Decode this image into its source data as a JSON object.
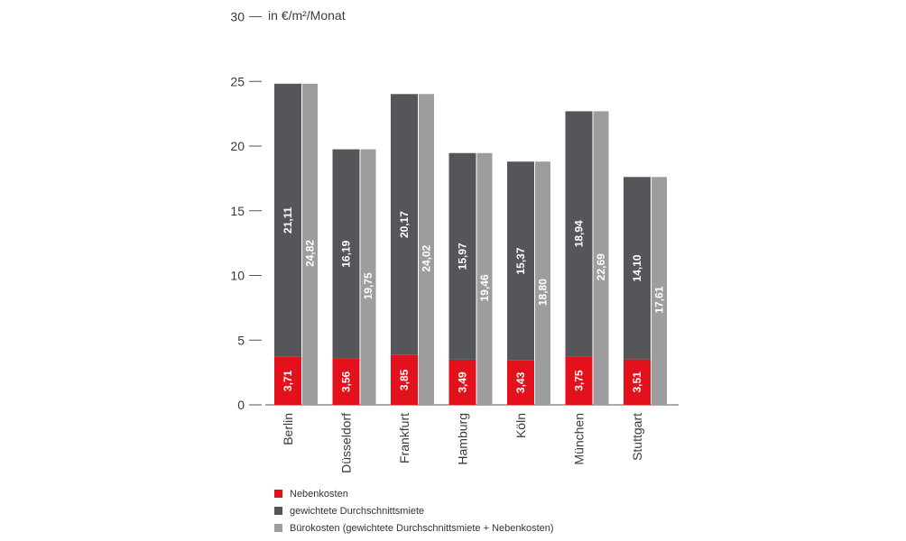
{
  "chart_data": {
    "type": "bar",
    "ylabel": "in €/m²/Monat",
    "ylim": [
      0,
      30
    ],
    "yticks": [
      0,
      5,
      10,
      15,
      20,
      25,
      30
    ],
    "categories": [
      "Berlin",
      "Düsseldorf",
      "Frankfurt",
      "Hamburg",
      "Köln",
      "München",
      "Stuttgart"
    ],
    "series": [
      {
        "name": "Nebenkosten",
        "color": "#e3111b",
        "values": [
          3.71,
          3.56,
          3.85,
          3.49,
          3.43,
          3.75,
          3.51
        ],
        "labels": [
          "3,71",
          "3,56",
          "3,85",
          "3,49",
          "3,43",
          "3,75",
          "3,51"
        ]
      },
      {
        "name": "gewichtete Durchschnittsmiete",
        "color": "#54565a",
        "values": [
          21.11,
          16.19,
          20.17,
          15.97,
          15.37,
          18.94,
          14.1
        ],
        "labels": [
          "21,11",
          "16,19",
          "20,17",
          "15,97",
          "15,37",
          "18,94",
          "14,10"
        ]
      },
      {
        "name": "Bürokosten (gewichtete Durchschnittsmiete + Nebenkosten)",
        "color": "#9d9d9f",
        "values": [
          24.82,
          19.75,
          24.02,
          19.46,
          18.8,
          22.69,
          17.61
        ],
        "labels": [
          "24,82",
          "19,75",
          "24,02",
          "19,46",
          "18,80",
          "22,69",
          "17,61"
        ]
      }
    ],
    "legend_position": "bottom-left",
    "grid": false
  }
}
